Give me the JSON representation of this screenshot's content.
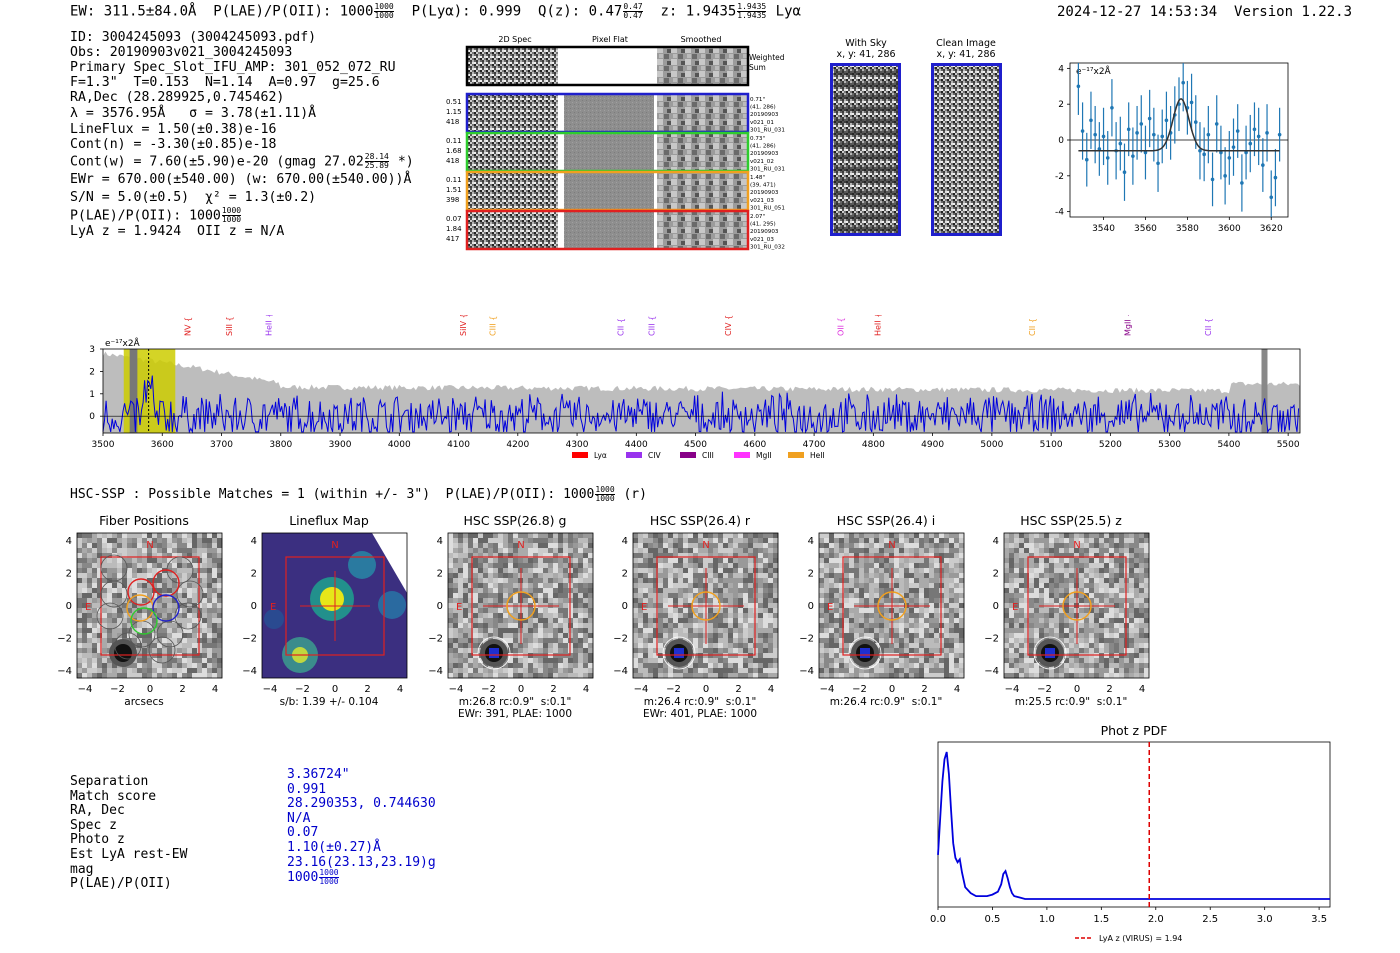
{
  "header": {
    "ew": "EW: 311.5±84.0Å",
    "plae_label": "P(LAE)/P(OII): 1000",
    "plae_num": "1000",
    "plae_den": "1000",
    "plya": "P(Lyα): 0.999",
    "qz_label": "Q(z): 0.47",
    "qz_num": "0.47",
    "qz_den": "0.47",
    "z_label": "z: 1.9435",
    "z_num": "1.9435",
    "z_den": "1.9435",
    "line_name": "Lyα",
    "timestamp": "2024-12-27 14:53:34",
    "version": "Version 1.22.3"
  },
  "info": {
    "id": "ID: 3004245093 (3004245093.pdf)",
    "obs": "Obs: 20190903v021_3004245093",
    "slot": "Primary Spec_Slot_IFU_AMP: 301_052_072_RU",
    "fparams": "F=1.3\"  T=0.153  N=1.14  A=0.97  g=25.6",
    "radec": "RA,Dec (28.289925,0.745462)",
    "lambda": "λ = 3576.95Å   σ = 3.78(±1.11)Å",
    "lineflux": "LineFlux = 1.50(±0.38)e-16",
    "contn": "Cont(n) = -3.30(±0.85)e-18",
    "contw": "Cont(w) = 7.60(±5.90)e-20 (gmag 27.02",
    "contw_num": "28.14",
    "contw_den": "25.89",
    "contw_end": "*)",
    "ewr": "EWr = 670.00(±540.00) (w: 670.00(±540.00))Å",
    "sn": "S/N = 5.0(±0.5)  χ² = 1.3(±0.2)",
    "plae": "P(LAE)/P(OII): 1000",
    "plae_num": "1000",
    "plae_den": "1000",
    "lyaz": "LyA z = 1.9424  OII z = N/A"
  },
  "spec2d": {
    "col_titles": [
      "2D Spec",
      "Pixel Flat",
      "Smoothed"
    ],
    "weighted_label": "Weighted\nSum",
    "rows": [
      {
        "left": [
          "0.51",
          "1.15",
          "418"
        ],
        "right": [
          "0.71\"",
          "(41, 286)",
          "20190903",
          "v021_01",
          "301_RU_031"
        ],
        "color": "#1f1fcc"
      },
      {
        "left": [
          "0.11",
          "1.68",
          "418"
        ],
        "right": [
          "0.73\"",
          "(41, 286)",
          "20190903",
          "v021_02",
          "301_RU_031"
        ],
        "color": "#2ecc2e"
      },
      {
        "left": [
          "0.11",
          "1.51",
          "398"
        ],
        "right": [
          "1.48\"",
          "(39, 471)",
          "20190903",
          "v021_03",
          "301_RU_051"
        ],
        "color": "#f0a020"
      },
      {
        "left": [
          "0.07",
          "1.84",
          "417"
        ],
        "right": [
          "2.07\"",
          "(41, 295)",
          "20190903",
          "v021_03",
          "301_RU_032"
        ],
        "color": "#e02020"
      }
    ]
  },
  "sky_panels": {
    "with_sky_title": "With Sky",
    "with_sky_sub": "x, y: 41, 286",
    "clean_title": "Clean Image",
    "clean_sub": "x, y: 41, 286"
  },
  "line_fit": {
    "units": "e⁻¹⁷x2Å",
    "x_ticks": [
      "3540",
      "3560",
      "3580",
      "3600",
      "3620"
    ],
    "y_ticks": [
      "4",
      "2",
      "0",
      "-2",
      "-4"
    ]
  },
  "full_spectrum": {
    "units": "e⁻¹⁷x2Å",
    "y_ticks": [
      "3",
      "2",
      "1",
      "0"
    ],
    "x_ticks": [
      "3500",
      "3600",
      "3700",
      "3800",
      "3900",
      "4000",
      "4100",
      "4200",
      "4300",
      "4400",
      "4500",
      "4600",
      "4700",
      "4800",
      "4900",
      "5000",
      "5100",
      "5200",
      "5300",
      "5400",
      "5500"
    ],
    "line_markers": [
      {
        "label": "NV",
        "wave": 3648,
        "color": "#e02020"
      },
      {
        "label": "SiII",
        "wave": 3718,
        "color": "#e02020"
      },
      {
        "label": "HeII",
        "wave": 3784,
        "color": "#9933ee"
      },
      {
        "label": "SiIV",
        "wave": 4113,
        "color": "#e02020"
      },
      {
        "label": "CIII",
        "wave": 4162,
        "color": "#f0a020"
      },
      {
        "label": "CII",
        "wave": 4378,
        "color": "#9933ee"
      },
      {
        "label": "CIII",
        "wave": 4431,
        "color": "#9933ee"
      },
      {
        "label": "CIV",
        "wave": 4560,
        "color": "#e02020"
      },
      {
        "label": "OII",
        "wave": 4750,
        "color": "#dd33dd"
      },
      {
        "label": "HeII",
        "wave": 4812,
        "color": "#e02020"
      },
      {
        "label": "CII",
        "wave": 5073,
        "color": "#f0a020"
      },
      {
        "label": "MgII",
        "wave": 5234,
        "color": "#880088"
      },
      {
        "label": "CII",
        "wave": 5370,
        "color": "#9933ee"
      }
    ],
    "legend": [
      {
        "label": "Lyα",
        "color": "#ff0000"
      },
      {
        "label": "CIV",
        "color": "#9933ee"
      },
      {
        "label": "CIII",
        "color": "#880088"
      },
      {
        "label": "MgII",
        "color": "#ff33ff"
      },
      {
        "label": "HeII",
        "color": "#f0a020"
      }
    ]
  },
  "hsc": {
    "title": "HSC-SSP : Possible Matches = 1 (within +/- 3\")  P(LAE)/P(OII): 1000",
    "title_num": "1000",
    "title_den": "1000",
    "title_end": "(r)",
    "cutouts": [
      {
        "title": "Fiber Positions",
        "caption": "arcsecs",
        "caption2": ""
      },
      {
        "title": "Lineflux Map",
        "caption": "s/b: 1.39 +/- 0.104",
        "caption2": ""
      },
      {
        "title": "HSC SSP(26.8) g",
        "caption": "m:26.8 rc:0.9\"  s:0.1\"",
        "caption2": "EWr: 391, PLAE: 1000"
      },
      {
        "title": "HSC SSP(26.4) r",
        "caption": "m:26.4 rc:0.9\"  s:0.1\"",
        "caption2": "EWr: 401, PLAE: 1000"
      },
      {
        "title": "HSC SSP(26.4) i",
        "caption": "m:26.4 rc:0.9\"  s:0.1\"",
        "caption2": ""
      },
      {
        "title": "HSC SSP(25.5) z",
        "caption": "m:25.5 rc:0.9\"  s:0.1\"",
        "caption2": ""
      }
    ],
    "axis_ticks": [
      "4",
      "2",
      "0",
      "−2",
      "−4"
    ],
    "axis_ticks_x": [
      "−4",
      "−2",
      "0",
      "2",
      "4"
    ],
    "north": "N",
    "east": "E"
  },
  "match_table": {
    "labels": [
      "Separation",
      "Match score",
      "RA, Dec",
      "Spec z",
      "Photo z",
      "Est LyA rest-EW",
      "mag",
      "P(LAE)/P(OII)"
    ],
    "values": [
      "3.36724\"",
      "0.991",
      "28.290353, 0.744630",
      "N/A",
      "0.07",
      "1.10(±0.27)Å",
      "23.16(23.13,23.19)g",
      "1000"
    ],
    "plae_num": "1000",
    "plae_den": "1000"
  },
  "photz": {
    "title": "Phot z PDF",
    "x_ticks": [
      "0.0",
      "0.5",
      "1.0",
      "1.5",
      "2.0",
      "2.5",
      "3.0",
      "3.5"
    ],
    "legend": "LyA z (VIRUS) = 1.94",
    "line_z": 1.94
  },
  "chart_data": [
    {
      "type": "line",
      "title": "Line fit",
      "xlabel": "",
      "ylabel": "e-17 x2Å",
      "xlim": [
        3524,
        3628
      ],
      "ylim": [
        -4.3,
        4.3
      ],
      "model_center": 3576.95,
      "model_sigma": 3.78,
      "model_amp": 2.9,
      "model_baseline": -0.6,
      "x": [
        3528,
        3530,
        3532,
        3534,
        3536,
        3538,
        3540,
        3542,
        3544,
        3546,
        3548,
        3550,
        3552,
        3554,
        3556,
        3558,
        3560,
        3562,
        3564,
        3566,
        3568,
        3570,
        3572,
        3574,
        3576,
        3578,
        3580,
        3582,
        3584,
        3586,
        3588,
        3590,
        3592,
        3594,
        3596,
        3598,
        3600,
        3602,
        3604,
        3606,
        3608,
        3610,
        3612,
        3614,
        3616,
        3618,
        3620,
        3622,
        3624
      ],
      "y": [
        3.0,
        0.5,
        -1.1,
        1.1,
        0.3,
        -0.5,
        0.2,
        -1.0,
        1.8,
        -0.6,
        -0.2,
        -1.8,
        0.6,
        -0.9,
        0.4,
        0.9,
        -0.7,
        1.2,
        0.3,
        -1.3,
        0.2,
        1.1,
        0.4,
        1.4,
        2.0,
        3.2,
        1.8,
        2.1,
        1.0,
        -0.6,
        -0.8,
        0.3,
        -2.2,
        0.9,
        -0.7,
        -2.0,
        -1.0,
        -0.4,
        0.5,
        -2.4,
        -0.7,
        -0.2,
        0.6,
        0.2,
        -1.4,
        0.4,
        -3.2,
        -2.1,
        0.3
      ],
      "yerr": [
        1.6,
        1.6,
        1.5,
        1.6,
        1.6,
        1.5,
        1.6,
        1.5,
        1.6,
        1.6,
        1.5,
        1.6,
        1.5,
        1.6,
        1.5,
        1.6,
        1.5,
        1.6,
        1.5,
        1.6,
        1.5,
        1.6,
        1.5,
        1.6,
        1.5,
        1.6,
        1.5,
        1.6,
        1.5,
        1.6,
        1.5,
        1.6,
        1.5,
        1.6,
        1.5,
        1.6,
        1.5,
        1.6,
        1.5,
        1.6,
        1.5,
        1.6,
        1.5,
        1.6,
        1.5,
        1.6,
        1.5,
        1.6,
        1.5
      ]
    },
    {
      "type": "line",
      "title": "Phot z PDF",
      "xlabel": "",
      "ylabel": "",
      "xlim": [
        0.0,
        3.6
      ],
      "x": [
        0.0,
        0.02,
        0.04,
        0.06,
        0.08,
        0.1,
        0.12,
        0.14,
        0.16,
        0.18,
        0.2,
        0.22,
        0.25,
        0.3,
        0.35,
        0.4,
        0.45,
        0.5,
        0.55,
        0.58,
        0.6,
        0.62,
        0.64,
        0.66,
        0.68,
        0.7,
        0.75,
        0.8,
        1.0,
        1.5,
        2.0,
        2.5,
        3.0,
        3.6
      ],
      "y": [
        0.3,
        0.55,
        0.8,
        0.95,
        1.0,
        0.85,
        0.6,
        0.38,
        0.28,
        0.25,
        0.27,
        0.18,
        0.08,
        0.04,
        0.02,
        0.02,
        0.02,
        0.03,
        0.05,
        0.1,
        0.17,
        0.19,
        0.14,
        0.08,
        0.04,
        0.02,
        0.01,
        0.0,
        0.0,
        0.0,
        0.0,
        0.0,
        0.0,
        0.0
      ]
    }
  ]
}
